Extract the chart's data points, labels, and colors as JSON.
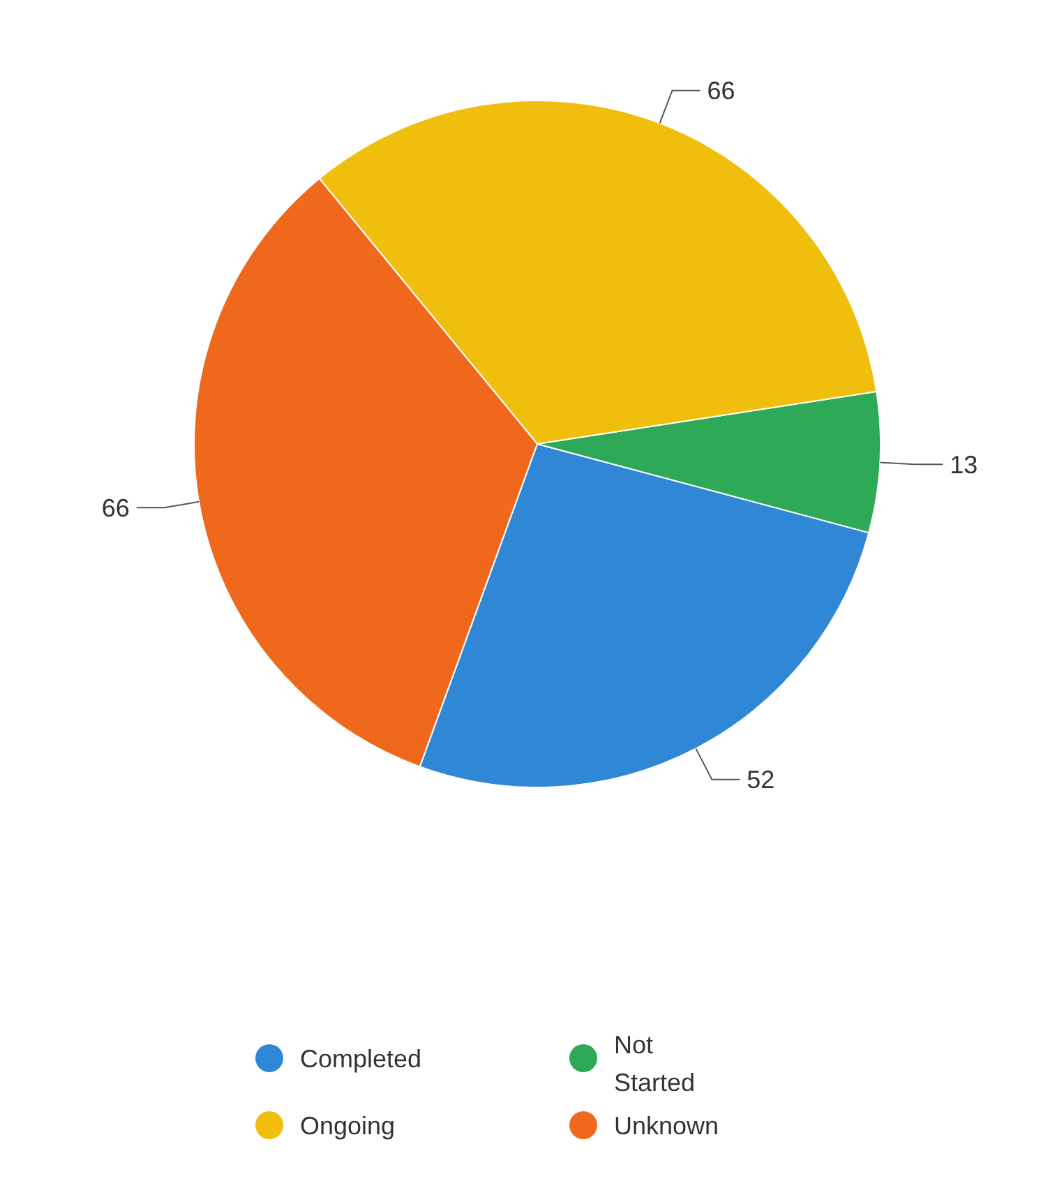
{
  "chart_data": {
    "type": "pie",
    "categories": [
      "Completed",
      "Not Started",
      "Ongoing",
      "Unknown"
    ],
    "values": [
      52,
      13,
      66,
      66
    ],
    "colors": [
      "#2f87d6",
      "#2ea957",
      "#f0be0c",
      "#f0681c"
    ],
    "data_labels": true,
    "legend": "bottom"
  }
}
